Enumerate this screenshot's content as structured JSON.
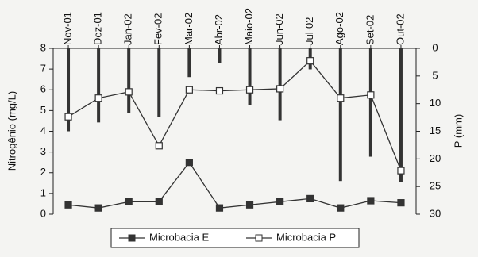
{
  "chart_data": {
    "type": "combo",
    "categories": [
      "Nov-01",
      "Dez-01",
      "Jan-02",
      "Fev-02",
      "Mar-02",
      "Abr-02",
      "Maio-02",
      "Jun-02",
      "Jul-02",
      "Ago-02",
      "Set-02",
      "Out-02"
    ],
    "ylabel": "Nitrogênio (mg/L)",
    "y2label": "P (mm)",
    "ylim": [
      0,
      8
    ],
    "yticks": [
      0,
      1,
      2,
      3,
      4,
      5,
      6,
      7,
      8
    ],
    "y2lim": [
      0,
      30
    ],
    "y2ticks": [
      0,
      5,
      10,
      15,
      20,
      25,
      30
    ],
    "y2_inverted": true,
    "series": [
      {
        "name": "Microbacia E",
        "color": "#333333",
        "marker_fill": "#333333",
        "values": [
          0.45,
          0.3,
          0.6,
          0.6,
          2.5,
          0.3,
          0.45,
          0.6,
          0.75,
          0.3,
          0.65,
          0.55
        ]
      },
      {
        "name": "Microbacia P",
        "color": "#333333",
        "marker_fill": "#ffffff",
        "values": [
          4.7,
          5.6,
          5.9,
          3.3,
          6.0,
          5.95,
          6.0,
          6.05,
          7.4,
          5.6,
          5.75,
          2.1
        ]
      }
    ],
    "bar_series": {
      "axis": "y2",
      "color": "#333333",
      "values": [
        15,
        13.4,
        11.7,
        12.4,
        5.2,
        2.6,
        10.2,
        13,
        3.8,
        24,
        19.6,
        24.2
      ]
    },
    "legend": "bottom"
  }
}
